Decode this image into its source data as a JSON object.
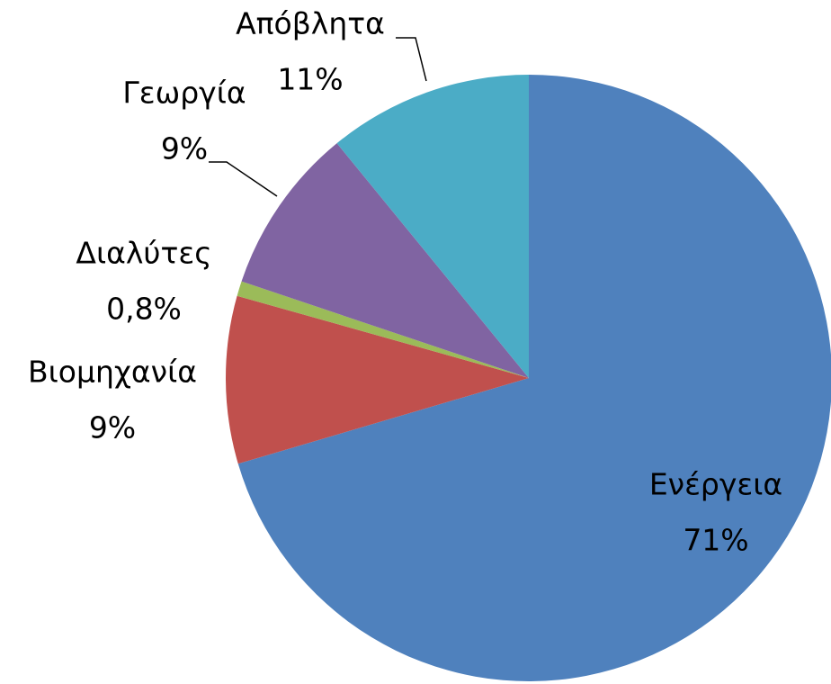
{
  "chart_data": {
    "type": "pie",
    "categories": [
      "Ενέργεια",
      "Βιομηχανία",
      "Διαλύτες",
      "Γεωργία",
      "Απόβλητα"
    ],
    "values": [
      71,
      9,
      0.8,
      9,
      11
    ],
    "value_labels": [
      "71%",
      "9%",
      "0,8%",
      "9%",
      "11%"
    ],
    "colors": [
      "#4F81BD",
      "#C0504D",
      "#9BBB59",
      "#8064A2",
      "#4BACC6"
    ]
  }
}
